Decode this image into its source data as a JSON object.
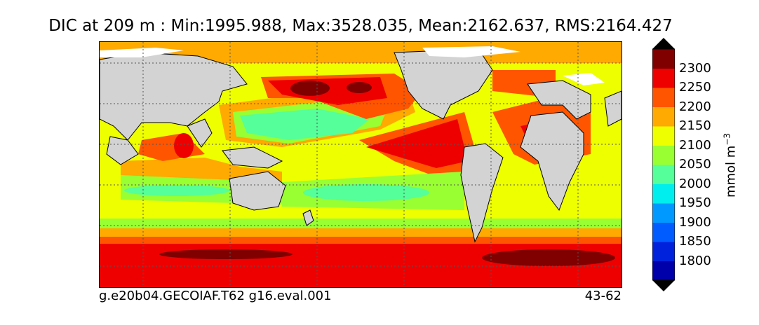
{
  "title": "DIC at 209 m : Min:1995.988, Max:3528.035, Mean:2162.637, RMS:2164.427",
  "caption_left": "g.e20b04.GECOIAF.T62 g16.eval.001",
  "caption_right": "43-62",
  "colorbar": {
    "units_base": "mmol m",
    "units_exp": "−3",
    "levels": [
      {
        "label": "1800",
        "color": "#0000aa"
      },
      {
        "label": "1850",
        "color": "#0022dd"
      },
      {
        "label": "1900",
        "color": "#005cff"
      },
      {
        "label": "1950",
        "color": "#0099ff"
      },
      {
        "label": "2000",
        "color": "#00eeee"
      },
      {
        "label": "2050",
        "color": "#55ff99"
      },
      {
        "label": "2100",
        "color": "#99ff33"
      },
      {
        "label": "2150",
        "color": "#eeff00"
      },
      {
        "label": "2200",
        "color": "#ffaa00"
      },
      {
        "label": "2250",
        "color": "#ff5500"
      },
      {
        "label": "2300",
        "color": "#ee0000"
      }
    ],
    "under_color": "#000080",
    "over_color": "#800000"
  },
  "map": {
    "land_color": "#d3d3d3",
    "ice_color": "#ffffff",
    "gridlines": true
  }
}
